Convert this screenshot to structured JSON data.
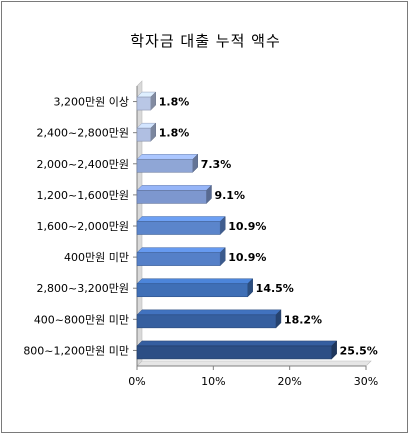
{
  "chart_data": {
    "type": "bar",
    "orientation": "horizontal",
    "title": "학자금 대출 누적 액수",
    "categories": [
      "3,200만원  이상",
      "2,400~2,800만원",
      "2,000~2,400만원",
      "1,200~1,600만원",
      "1,600~2,000만원",
      "400만원  미만",
      "2,800~3,200만원",
      "400~800만원  미만",
      "800~1,200만원  미만"
    ],
    "values": [
      1.8,
      1.8,
      7.3,
      9.1,
      10.9,
      10.9,
      14.5,
      18.2,
      25.5
    ],
    "value_labels": [
      "1.8%",
      "1.8%",
      "7.3%",
      "9.1%",
      "10.9%",
      "10.9%",
      "14.5%",
      "18.2%",
      "25.5%"
    ],
    "xlim": [
      0,
      30
    ],
    "x_ticks": [
      0,
      10,
      20,
      30
    ],
    "x_tick_labels": [
      "0%",
      "10%",
      "20%",
      "30%"
    ],
    "xlabel": "",
    "ylabel": "",
    "grid": false,
    "legend": "none",
    "colors": [
      "#b9c7e6",
      "#b0bfe2",
      "#8fa6d6",
      "#7d97cf",
      "#5b85cb",
      "#5580c8",
      "#3f6fb6",
      "#365f9f",
      "#2c4e85"
    ]
  }
}
